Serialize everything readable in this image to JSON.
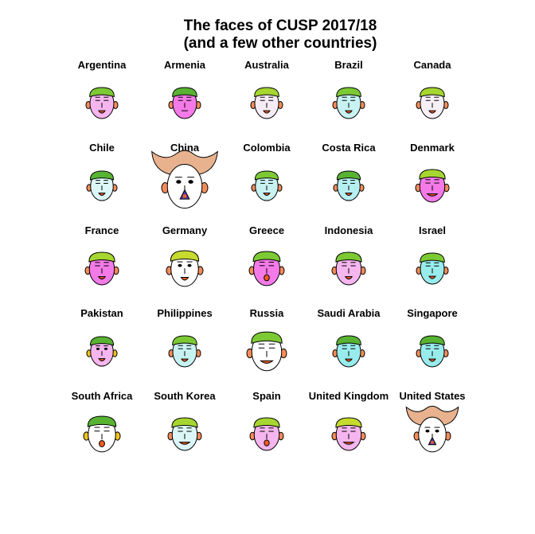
{
  "chart_data": {
    "type": "chernoff-faces",
    "title": "The faces of CUSP 2017/18",
    "subtitle": "(and a few other countries)",
    "grid": false,
    "legend": "none",
    "columns": 5,
    "faces": [
      {
        "label": "Argentina",
        "skin": "#f5b5ee",
        "hair": "#7cc934",
        "hat": "cap",
        "eyes": "closed",
        "mouth": "smile",
        "ears": "#f58c5a",
        "size": 1.0
      },
      {
        "label": "Armenia",
        "skin": "#f47ae8",
        "hair": "#58b332",
        "hat": "cap",
        "eyes": "closed",
        "mouth": "line",
        "ears": "#f58c5a",
        "size": 1.0
      },
      {
        "label": "Australia",
        "skin": "#f6ecf6",
        "hair": "#a6d630",
        "hat": "cap",
        "eyes": "closed",
        "mouth": "smile",
        "ears": "#f58c5a",
        "size": 1.0
      },
      {
        "label": "Brazil",
        "skin": "#c8f2f2",
        "hair": "#7cc934",
        "hat": "cap",
        "eyes": "closed",
        "mouth": "smile",
        "ears": "#f58c5a",
        "size": 1.0
      },
      {
        "label": "Canada",
        "skin": "#f7f0f7",
        "hair": "#a6d630",
        "hat": "cap",
        "eyes": "closed",
        "mouth": "smile",
        "ears": "#f58c5a",
        "size": 1.0
      },
      {
        "label": "Chile",
        "skin": "#dcf7f7",
        "hair": "#58b332",
        "hat": "cap",
        "eyes": "closed",
        "mouth": "smile",
        "ears": "#f58c5a",
        "size": 0.95
      },
      {
        "label": "China",
        "skin": "#ffffff",
        "hair": "#e8b28e",
        "hat": "horns",
        "eyes": "open",
        "mouth": "nose",
        "ears": "#f58c5a",
        "size": 1.45
      },
      {
        "label": "Colombia",
        "skin": "#c8f2f2",
        "hair": "#7cc934",
        "hat": "cap",
        "eyes": "closed",
        "mouth": "smile",
        "ears": "#f58c5a",
        "size": 0.95
      },
      {
        "label": "Costa Rica",
        "skin": "#b6efef",
        "hair": "#58b332",
        "hat": "cap",
        "eyes": "closed",
        "mouth": "smile",
        "ears": "#f58c5a",
        "size": 0.95
      },
      {
        "label": "Denmark",
        "skin": "#f47ae8",
        "hair": "#a6d630",
        "hat": "cap",
        "eyes": "closed",
        "mouth": "grin",
        "ears": "#f58c5a",
        "size": 1.05
      },
      {
        "label": "France",
        "skin": "#f47ae8",
        "hair": "#a6d630",
        "hat": "cap",
        "eyes": "closed",
        "mouth": "smile",
        "ears": "#f58c5a",
        "size": 1.05
      },
      {
        "label": "Germany",
        "skin": "#ffffff",
        "hair": "#c6db2e",
        "hat": "cap",
        "eyes": "open",
        "mouth": "smile",
        "ears": "#f58c5a",
        "size": 1.15
      },
      {
        "label": "Greece",
        "skin": "#f47ae8",
        "hair": "#7cc934",
        "hat": "cap",
        "eyes": "closed",
        "mouth": "open",
        "ears": "#f58c5a",
        "size": 1.1
      },
      {
        "label": "Indonesia",
        "skin": "#f5b5ee",
        "hair": "#7cc934",
        "hat": "cap",
        "eyes": "closed",
        "mouth": "smile",
        "ears": "#f58c5a",
        "size": 1.05
      },
      {
        "label": "Israel",
        "skin": "#98ecec",
        "hair": "#7cc934",
        "hat": "cap",
        "eyes": "closed",
        "mouth": "smile",
        "ears": "#f58c5a",
        "size": 1.0
      },
      {
        "label": "Pakistan",
        "skin": "#f5b5ee",
        "hair": "#58b332",
        "hat": "cap",
        "eyes": "open",
        "mouth": "smile",
        "ears": "#f2c21f",
        "size": 0.95
      },
      {
        "label": "Philippines",
        "skin": "#c8f2f2",
        "hair": "#7cc934",
        "hat": "cap",
        "eyes": "closed",
        "mouth": "smile",
        "ears": "#f58c5a",
        "size": 1.0
      },
      {
        "label": "Russia",
        "skin": "#ffffff",
        "hair": "#7cc934",
        "hat": "cap",
        "eyes": "closed",
        "mouth": "grin",
        "ears": "#f58c5a",
        "size": 1.25
      },
      {
        "label": "Saudi Arabia",
        "skin": "#98ecec",
        "hair": "#58b332",
        "hat": "cap",
        "eyes": "closed",
        "mouth": "smile",
        "ears": "#f58c5a",
        "size": 1.0
      },
      {
        "label": "Singapore",
        "skin": "#98ecec",
        "hair": "#58b332",
        "hat": "cap",
        "eyes": "closed",
        "mouth": "smile",
        "ears": "#f58c5a",
        "size": 1.0
      },
      {
        "label": "South Africa",
        "skin": "#ffffff",
        "hair": "#58b332",
        "hat": "cap",
        "eyes": "closed",
        "mouth": "open",
        "ears": "#f2c21f",
        "size": 1.15
      },
      {
        "label": "South Korea",
        "skin": "#dcf7f7",
        "hair": "#a6d630",
        "hat": "cap",
        "eyes": "closed",
        "mouth": "grin",
        "ears": "#f58c5a",
        "size": 1.05
      },
      {
        "label": "Spain",
        "skin": "#f5b5ee",
        "hair": "#a6d630",
        "hat": "cap",
        "eyes": "closed",
        "mouth": "open",
        "ears": "#f58c5a",
        "size": 1.05
      },
      {
        "label": "United Kingdom",
        "skin": "#f5b5ee",
        "hair": "#c6db2e",
        "hat": "cap",
        "eyes": "closed",
        "mouth": "grin",
        "ears": "#f58c5a",
        "size": 1.05
      },
      {
        "label": "United States",
        "skin": "#ffffff",
        "hair": "#e8b28e",
        "hat": "horns",
        "eyes": "open",
        "mouth": "nose",
        "ears": "#f58c5a",
        "size": 1.15
      }
    ]
  }
}
